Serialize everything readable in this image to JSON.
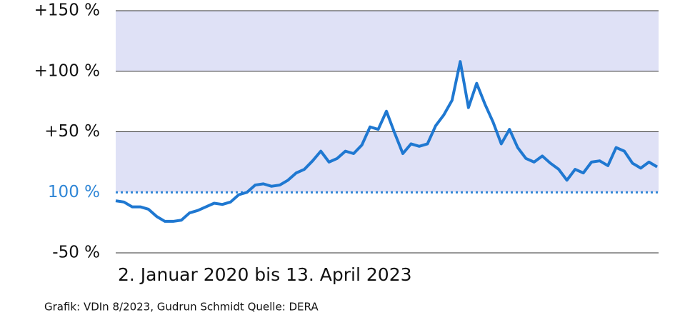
{
  "chart_data": {
    "type": "line",
    "x_label": "2. Januar 2020 bis 13. April 2023",
    "source": "Grafik: VDIn 8/2023, Gudrun Schmidt Quelle: DERA",
    "series": [
      {
        "color": "#1f78d1",
        "values": [
          -7,
          -8,
          -12,
          -12,
          -14,
          -20,
          -24,
          -24,
          -23,
          -17,
          -15,
          -12,
          -9,
          -10,
          -8,
          -2,
          0,
          6,
          7,
          5,
          6,
          10,
          16,
          19,
          26,
          34,
          25,
          28,
          34,
          32,
          39,
          54,
          52,
          67,
          49,
          32,
          40,
          38,
          40,
          55,
          64,
          76,
          108,
          70,
          90,
          73,
          58,
          40,
          52,
          37,
          28,
          25,
          30,
          24,
          19,
          10,
          19,
          16,
          25,
          26,
          22,
          37,
          34,
          24,
          20,
          25,
          21
        ]
      }
    ],
    "ylim": [
      -50,
      150
    ],
    "yticks": [
      {
        "value": -50,
        "label": "-50 %"
      },
      {
        "value": 0,
        "label": "100 %"
      },
      {
        "value": 50,
        "label": "+50 %"
      },
      {
        "value": 100,
        "label": "+100 %"
      },
      {
        "value": 150,
        "label": "+150 %"
      }
    ],
    "band_color": "#dfe1f6",
    "baseline_color": "#2f86d6",
    "grid_color": "#333333"
  }
}
